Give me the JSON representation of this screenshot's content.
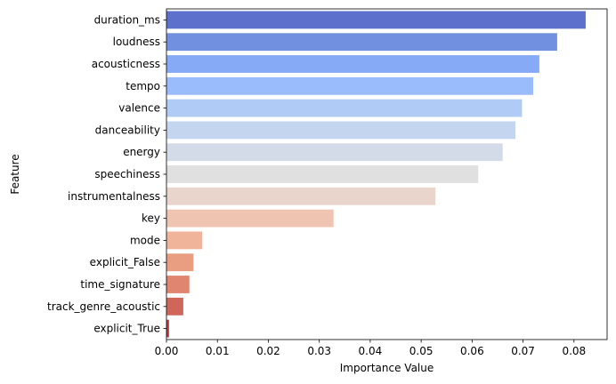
{
  "chart_data": {
    "type": "bar",
    "orientation": "horizontal",
    "categories": [
      "duration_ms",
      "loudness",
      "acousticness",
      "tempo",
      "valence",
      "danceability",
      "energy",
      "speechiness",
      "instrumentalness",
      "key",
      "mode",
      "explicit_False",
      "time_signature",
      "track_genre_acoustic",
      "explicit_True"
    ],
    "values": [
      0.0823,
      0.0767,
      0.0732,
      0.072,
      0.0698,
      0.0685,
      0.066,
      0.0612,
      0.0528,
      0.0328,
      0.007,
      0.0053,
      0.0045,
      0.0033,
      0.0005
    ],
    "colors": [
      "#5d71cc",
      "#7191e0",
      "#86aaf5",
      "#9bbcfc",
      "#b0cbf5",
      "#c4d5f0",
      "#d4dbe8",
      "#e0e0e0",
      "#e9d5cc",
      "#efc4b0",
      "#f0b49b",
      "#e99e82",
      "#e08670",
      "#d0665a",
      "#c13a3a"
    ],
    "xlabel": "Importance Value",
    "ylabel": "Feature",
    "xlim": [
      0,
      0.0865
    ],
    "xticks": [
      0.0,
      0.01,
      0.02,
      0.03,
      0.04,
      0.05,
      0.06,
      0.07,
      0.08
    ],
    "xtick_labels": [
      "0.00",
      "0.01",
      "0.02",
      "0.03",
      "0.04",
      "0.05",
      "0.06",
      "0.07",
      "0.08"
    ],
    "grid": false
  }
}
